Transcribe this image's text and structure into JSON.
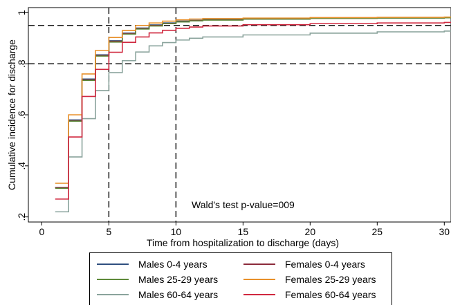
{
  "chart_data": {
    "type": "line",
    "step": true,
    "title": "",
    "xlabel": "Time from hospitalization to discharge (days)",
    "ylabel": "Cumulative incidence for discharge",
    "xlim": [
      -1,
      30.5
    ],
    "ylim": [
      0.18,
      1.02
    ],
    "xticks": [
      0,
      5,
      10,
      15,
      20,
      25,
      30
    ],
    "xtick_labels": [
      "0",
      "5",
      "10",
      "15",
      "20",
      "25",
      "30"
    ],
    "yticks": [
      0.2,
      0.4,
      0.6,
      0.8,
      1.0
    ],
    "ytick_labels": [
      ".2",
      ".4",
      ".6",
      ".8",
      "1"
    ],
    "reference_lines": {
      "vertical_x": [
        5,
        10
      ],
      "horizontal_y": [
        0.8,
        0.95
      ],
      "style": "dashed"
    },
    "annotation": "Wald's test p-value=009",
    "grid": false,
    "legend_position": "bottom",
    "series": [
      {
        "name": "Males 0-4 years",
        "color": "#2f4f7f",
        "x": [
          1,
          2,
          3,
          4,
          5,
          6,
          7,
          8,
          9,
          10,
          11,
          12,
          15,
          20,
          25,
          30
        ],
        "y": [
          0.315,
          0.58,
          0.74,
          0.835,
          0.89,
          0.92,
          0.94,
          0.952,
          0.96,
          0.967,
          0.97,
          0.973,
          0.976,
          0.979,
          0.98,
          0.981
        ]
      },
      {
        "name": "Females 0-4 years",
        "color": "#8b2a3a",
        "x": [
          1,
          2,
          3,
          4,
          5,
          6,
          7,
          8,
          9,
          10,
          11,
          12,
          15,
          20,
          25,
          30
        ],
        "y": [
          0.315,
          0.577,
          0.737,
          0.832,
          0.888,
          0.918,
          0.938,
          0.95,
          0.958,
          0.965,
          0.969,
          0.972,
          0.975,
          0.978,
          0.979,
          0.98
        ]
      },
      {
        "name": "Males 25-29 years",
        "color": "#5e8a3a",
        "x": [
          1,
          2,
          3,
          4,
          5,
          6,
          7,
          8,
          9,
          10,
          11,
          12,
          15,
          20,
          25,
          30
        ],
        "y": [
          0.312,
          0.575,
          0.735,
          0.83,
          0.885,
          0.916,
          0.936,
          0.948,
          0.957,
          0.964,
          0.968,
          0.971,
          0.975,
          0.978,
          0.979,
          0.98
        ]
      },
      {
        "name": "Females 25-29 years",
        "color": "#e8902a",
        "x": [
          1,
          2,
          3,
          4,
          5,
          6,
          7,
          8,
          9,
          10,
          11,
          12,
          15,
          20,
          25,
          30
        ],
        "y": [
          0.332,
          0.6,
          0.76,
          0.852,
          0.903,
          0.93,
          0.95,
          0.96,
          0.967,
          0.972,
          0.975,
          0.977,
          0.979,
          0.981,
          0.982,
          0.983
        ]
      },
      {
        "name": "Males 60-64 years",
        "color": "#8aa39c",
        "x": [
          1,
          2,
          3,
          4,
          5,
          6,
          7,
          8,
          9,
          10,
          11,
          12,
          15,
          20,
          25,
          30
        ],
        "y": [
          0.22,
          0.435,
          0.585,
          0.695,
          0.765,
          0.812,
          0.846,
          0.87,
          0.883,
          0.893,
          0.9,
          0.905,
          0.913,
          0.92,
          0.925,
          0.928
        ]
      },
      {
        "name": "Females 60-64 years",
        "color": "#d0283f",
        "x": [
          1,
          2,
          3,
          4,
          5,
          6,
          7,
          8,
          9,
          10,
          11,
          12,
          15,
          20,
          25,
          30
        ],
        "y": [
          0.27,
          0.513,
          0.672,
          0.778,
          0.845,
          0.884,
          0.905,
          0.921,
          0.931,
          0.939,
          0.944,
          0.948,
          0.953,
          0.957,
          0.96,
          0.962
        ]
      }
    ]
  }
}
